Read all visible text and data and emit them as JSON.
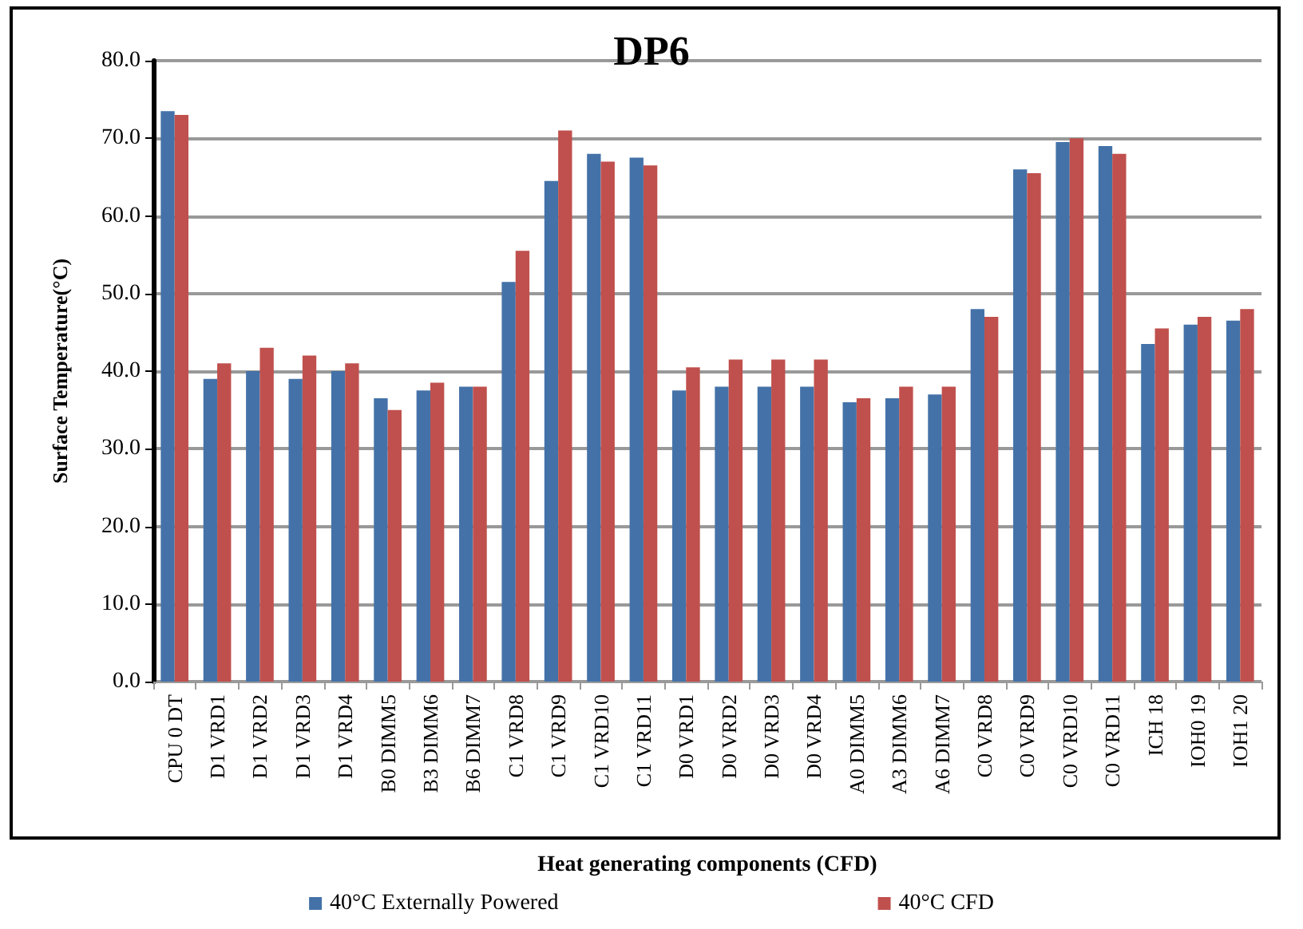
{
  "chart_data": {
    "type": "bar",
    "title": "DP6",
    "xlabel": "Heat generating components (CFD)",
    "ylabel": "Surface Temperature(°C)",
    "categories": [
      "CPU 0 DT",
      "D1 VRD1",
      "D1 VRD2",
      "D1 VRD3",
      "D1 VRD4",
      "B0 DIMM5",
      "B3 DIMM6",
      "B6 DIMM7",
      "C1 VRD8",
      "C1 VRD9",
      "C1 VRD10",
      "C1 VRD11",
      "D0 VRD1",
      "D0 VRD2",
      "D0 VRD3",
      "D0 VRD4",
      "A0 DIMM5",
      "A3 DIMM6",
      "A6 DIMM7",
      "C0 VRD8",
      "C0 VRD9",
      "C0 VRD10",
      "C0 VRD11",
      "ICH 18",
      "IOH0 19",
      "IOH1 20"
    ],
    "series": [
      {
        "name": "40°C Externally Powered",
        "color": "#4472a8",
        "values": [
          73.5,
          39,
          40,
          39,
          40,
          36.5,
          37.5,
          38,
          51.5,
          64.5,
          68,
          67.5,
          37.5,
          38,
          38,
          38,
          36,
          36.5,
          37,
          48,
          66,
          69.5,
          69,
          43.5,
          46,
          46.5
        ]
      },
      {
        "name": "40°C CFD",
        "color": "#c0504d",
        "values": [
          73,
          41,
          43,
          42,
          41,
          35,
          38.5,
          38,
          55.5,
          71,
          67,
          66.5,
          40.5,
          41.5,
          41.5,
          41.5,
          36.5,
          38,
          38,
          47,
          65.5,
          70,
          68,
          45.5,
          47,
          48
        ]
      }
    ],
    "ylim": [
      0,
      80
    ],
    "yticks": [
      {
        "value": 0,
        "label": "0.0"
      },
      {
        "value": 10,
        "label": "10.0"
      },
      {
        "value": 20,
        "label": "20.0"
      },
      {
        "value": 30,
        "label": "30.0"
      },
      {
        "value": 40,
        "label": "40.0"
      },
      {
        "value": 50,
        "label": "50.0"
      },
      {
        "value": 60,
        "label": "60.0"
      },
      {
        "value": 70,
        "label": "70.0"
      },
      {
        "value": 80,
        "label": "80.0"
      }
    ],
    "grid": "y",
    "legend": "bottom"
  }
}
